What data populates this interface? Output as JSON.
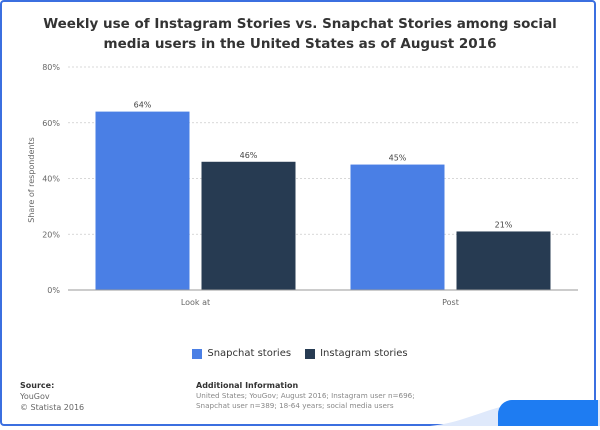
{
  "title": "Weekly use of Instagram Stories vs. Snapchat Stories among social media users in the United States as of August 2016",
  "chart_data": {
    "type": "bar",
    "title": "Weekly use of Instagram Stories vs. Snapchat Stories among social media users in the United States as of August 2016",
    "categories": [
      "Look at",
      "Post"
    ],
    "series": [
      {
        "name": "Snapchat stories",
        "values": [
          64,
          45
        ],
        "color": "#4a7fe5"
      },
      {
        "name": "Instagram stories",
        "values": [
          46,
          21
        ],
        "color": "#273b52"
      }
    ],
    "ylabel": "Share of respondents",
    "ylim": [
      0,
      80
    ],
    "yticks": [
      0,
      20,
      40,
      60,
      80
    ],
    "ytick_labels": [
      "0%",
      "20%",
      "40%",
      "60%",
      "80%"
    ],
    "data_label_suffix": "%",
    "grid": true,
    "legend_position": "bottom"
  },
  "footer": {
    "source_label": "Source:",
    "source_name": "YouGov",
    "copyright": "© Statista 2016",
    "info_label": "Additional Information",
    "info_text": "United States; YouGov; August 2016; Instagram user n=696; Snapchat user n=389; 18-64 years; social media users"
  }
}
